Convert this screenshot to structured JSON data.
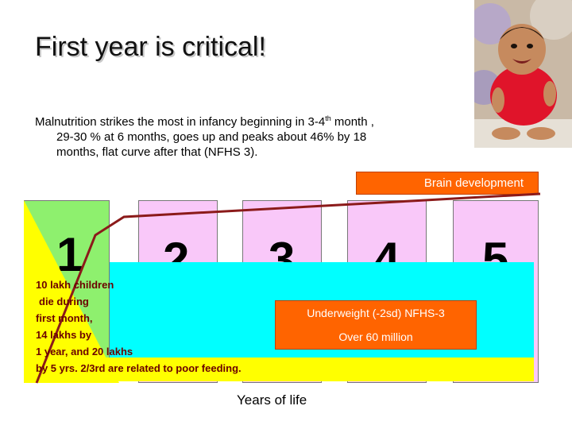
{
  "slide": {
    "title": "First year is critical!",
    "description": {
      "line1": "Malnutrition strikes the most in infancy beginning in 3-4",
      "line1_sup": "th",
      "line1_end": " month ,",
      "line2": "29-30 % at 6 months, goes up and peaks about 46% by 18",
      "line3": "months, flat curve after that (NFHS 3)."
    },
    "brain_label": "Brain development",
    "years": [
      "1",
      "2",
      "3",
      "4",
      "5"
    ],
    "note_lines": [
      "10 lakh children",
      "die during",
      "first month,",
      "14 lakhs by",
      "1 year, and 20 lakhs",
      "by 5 yrs. 2/3rd are related to poor feeding."
    ],
    "underweight_line1": "Underweight (-2sd) NFHS-3",
    "underweight_line2": "Over 60 million",
    "x_axis_label": "Years of life",
    "colors": {
      "year1_box": "#8ef06e",
      "year_boxes": "#f9c8f9",
      "cyan_band": "#00ffff",
      "yellow_band": "#ffff00",
      "orange_labels": "#ff6400",
      "curve": "#8b1a1a"
    }
  }
}
